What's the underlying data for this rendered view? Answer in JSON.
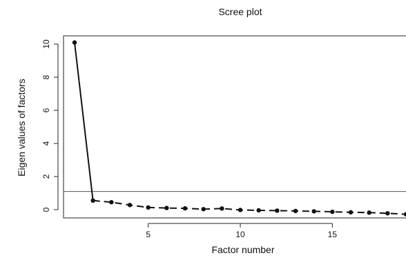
{
  "chart_data": {
    "type": "line",
    "title": "Scree plot",
    "xlabel": "Factor number",
    "ylabel": "Eigen values of factors",
    "xlim": [
      0.4,
      19.0
    ],
    "ylim": [
      -0.5,
      10.5
    ],
    "x_ticks": [
      5,
      10,
      15
    ],
    "y_ticks": [
      0,
      2,
      4,
      6,
      8,
      10
    ],
    "grid": false,
    "reference_line": {
      "y": 1.1
    },
    "series": [
      {
        "x": [
          1,
          2,
          3,
          4,
          5,
          6,
          7,
          8,
          9,
          10,
          11,
          12,
          13,
          14,
          15,
          16,
          17,
          18,
          19
        ],
        "values": [
          10.1,
          0.55,
          0.45,
          0.28,
          0.13,
          0.1,
          0.08,
          0.03,
          0.07,
          -0.02,
          -0.04,
          -0.06,
          -0.08,
          -0.1,
          -0.13,
          -0.16,
          -0.18,
          -0.22,
          -0.28
        ]
      }
    ]
  }
}
